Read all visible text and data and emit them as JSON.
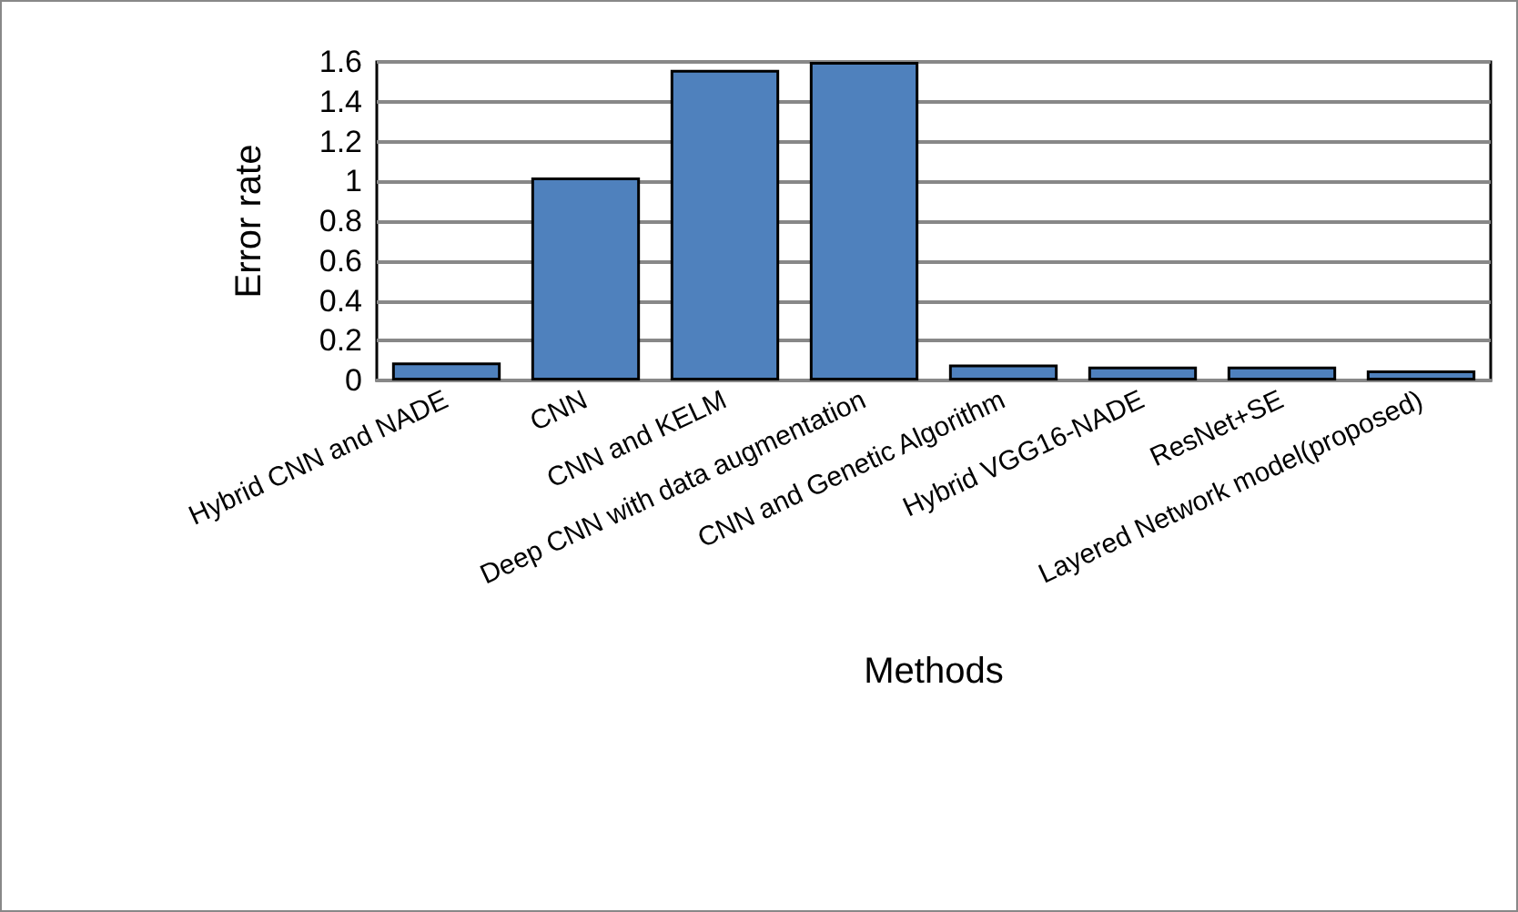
{
  "chart_data": {
    "type": "bar",
    "categories": [
      "Hybrid CNN and NADE",
      "CNN",
      "CNN and KELM",
      "Deep CNN with data augmentation",
      "CNN and Genetic Algorithm",
      "Hybrid VGG16-NADE",
      "ResNet+SE",
      "Layered Network model(proposed)"
    ],
    "values": [
      0.09,
      1.02,
      1.56,
      1.6,
      0.08,
      0.07,
      0.07,
      0.05
    ],
    "color": "#4f81bd",
    "xlabel": "Methods",
    "ylabel": "Error rate",
    "ylim": [
      0,
      1.6
    ],
    "yticks": [
      0,
      0.2,
      0.4,
      0.6,
      0.8,
      1,
      1.2,
      1.4,
      1.6
    ],
    "grid": "y"
  }
}
